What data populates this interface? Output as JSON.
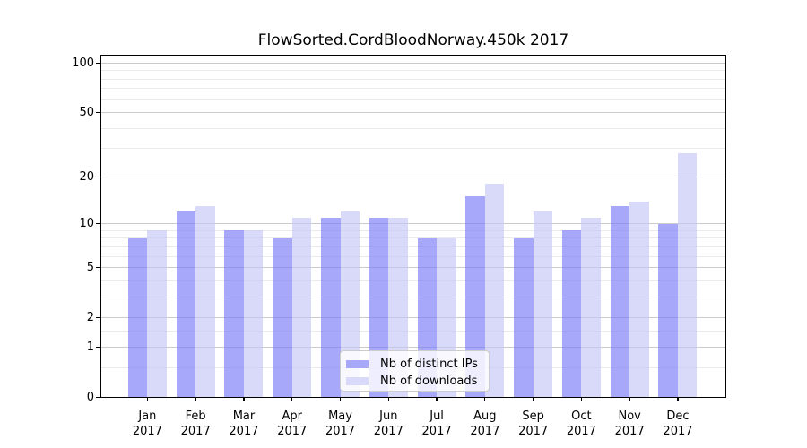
{
  "title": "FlowSorted.CordBloodNorway.450k 2017",
  "chart_data": {
    "type": "bar",
    "title": "FlowSorted.CordBloodNorway.450k 2017",
    "categories": [
      "Jan 2017",
      "Feb 2017",
      "Mar 2017",
      "Apr 2017",
      "May 2017",
      "Jun 2017",
      "Jul 2017",
      "Aug 2017",
      "Sep 2017",
      "Oct 2017",
      "Nov 2017",
      "Dec 2017"
    ],
    "series": [
      {
        "name": "Nb of distinct IPs",
        "color": "#a8a8fa",
        "fill": "rgba(121,121,247,0.65)",
        "values": [
          8,
          12,
          9,
          8,
          11,
          11,
          8,
          15,
          8,
          9,
          13,
          10
        ]
      },
      {
        "name": "Nb of downloads",
        "color": "#d9d9f9",
        "fill": "rgba(197,197,246,0.65)",
        "values": [
          9,
          13,
          9,
          11,
          12,
          11,
          8,
          18,
          12,
          11,
          14,
          28
        ]
      }
    ],
    "xlabel": "",
    "ylabel": "",
    "yscale": "log1p",
    "ylim": [
      0,
      112.5
    ],
    "yticks": [
      0,
      1,
      2,
      5,
      10,
      20,
      50,
      100
    ],
    "minor_yticks": [
      0.5,
      1.5,
      3,
      4,
      6,
      7,
      8,
      9,
      30,
      40,
      60,
      70,
      80,
      90
    ],
    "grid": true,
    "legend_position": "lower center"
  },
  "colors": {
    "background": "#ffffff",
    "bar_distinct_ips": "#a8a8fa",
    "bar_downloads": "#d9d9f9",
    "grid_major": "#cbcbcb",
    "grid_minor": "#eaeaea",
    "spine": "#000000",
    "legend_border": "#cccccc"
  }
}
